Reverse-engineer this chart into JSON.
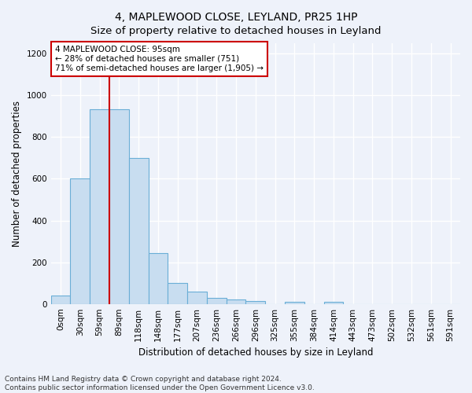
{
  "title": "4, MAPLEWOOD CLOSE, LEYLAND, PR25 1HP",
  "subtitle": "Size of property relative to detached houses in Leyland",
  "xlabel": "Distribution of detached houses by size in Leyland",
  "ylabel": "Number of detached properties",
  "bar_labels": [
    "0sqm",
    "30sqm",
    "59sqm",
    "89sqm",
    "118sqm",
    "148sqm",
    "177sqm",
    "207sqm",
    "236sqm",
    "266sqm",
    "296sqm",
    "325sqm",
    "355sqm",
    "384sqm",
    "414sqm",
    "443sqm",
    "473sqm",
    "502sqm",
    "532sqm",
    "561sqm",
    "591sqm"
  ],
  "bar_values": [
    40,
    600,
    935,
    935,
    700,
    245,
    100,
    60,
    30,
    20,
    15,
    0,
    10,
    0,
    10,
    0,
    0,
    0,
    0,
    0,
    0
  ],
  "bar_color": "#c8ddf0",
  "bar_edge_color": "#6aaed6",
  "bar_width": 1.0,
  "ylim": [
    0,
    1250
  ],
  "yticks": [
    0,
    200,
    400,
    600,
    800,
    1000,
    1200
  ],
  "red_line_x": 2.5,
  "red_line_color": "#cc0000",
  "annotation_text": "4 MAPLEWOOD CLOSE: 95sqm\n← 28% of detached houses are smaller (751)\n71% of semi-detached houses are larger (1,905) →",
  "annotation_box_color": "#ffffff",
  "annotation_border_color": "#cc0000",
  "footer_text": "Contains HM Land Registry data © Crown copyright and database right 2024.\nContains public sector information licensed under the Open Government Licence v3.0.",
  "bg_color": "#eef2fa",
  "plot_bg_color": "#eef2fa",
  "grid_color": "#ffffff",
  "title_fontsize": 10,
  "axis_label_fontsize": 8.5,
  "tick_fontsize": 7.5,
  "annotation_fontsize": 7.5,
  "footer_fontsize": 6.5
}
